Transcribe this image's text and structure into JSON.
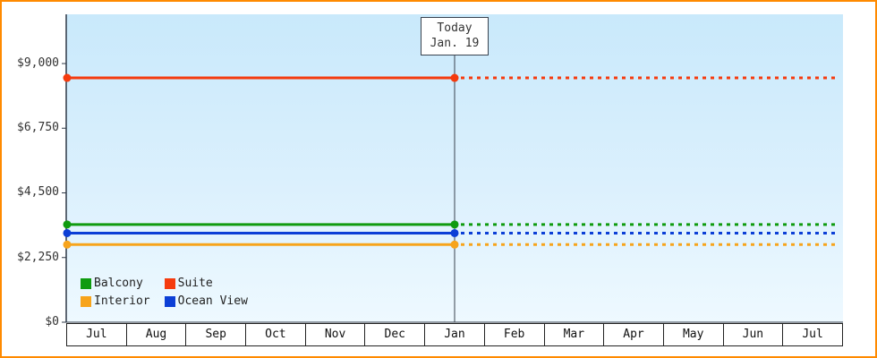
{
  "frame": {
    "border_color": "#ff8a00",
    "background": "#ffffff"
  },
  "today": {
    "label": "Today",
    "date": "Jan. 19"
  },
  "y_axis": {
    "ticks": [
      "$9,000",
      "$6,750",
      "$4,500",
      "$2,250",
      "$0"
    ]
  },
  "x_axis": {
    "labels": [
      "Jul",
      "Aug",
      "Sep",
      "Oct",
      "Nov",
      "Dec",
      "Jan",
      "Feb",
      "Mar",
      "Apr",
      "May",
      "Jun",
      "Jul"
    ]
  },
  "legend": {
    "items": [
      {
        "label": "Balcony",
        "color": "#0f9b0f"
      },
      {
        "label": "Suite",
        "color": "#f53b0e"
      },
      {
        "label": "Interior",
        "color": "#f7a41c"
      },
      {
        "label": "Ocean View",
        "color": "#0c3fd6"
      }
    ]
  },
  "chart_data": {
    "type": "line",
    "title": "",
    "x_labels": [
      "Jul",
      "Aug",
      "Sep",
      "Oct",
      "Nov",
      "Dec",
      "Jan",
      "Feb",
      "Mar",
      "Apr",
      "May",
      "Jun",
      "Jul"
    ],
    "today": {
      "x_index": 6,
      "label": "Today",
      "date": "Jan. 19"
    },
    "y_ticks": [
      0,
      2250,
      4500,
      6750,
      9000
    ],
    "ylim": [
      0,
      10700
    ],
    "grid": false,
    "legend_position": "bottom-left-inside",
    "series": [
      {
        "name": "Suite",
        "color": "#f53b0e",
        "value": 8500,
        "pattern": "solid-before-today-dotted-after"
      },
      {
        "name": "Balcony",
        "color": "#0f9b0f",
        "value": 3400,
        "pattern": "solid-before-today-dotted-after"
      },
      {
        "name": "Ocean View",
        "color": "#0c3fd6",
        "value": 3100,
        "pattern": "solid-before-today-dotted-after"
      },
      {
        "name": "Interior",
        "color": "#f7a41c",
        "value": 2700,
        "pattern": "solid-before-today-dotted-after"
      }
    ]
  }
}
